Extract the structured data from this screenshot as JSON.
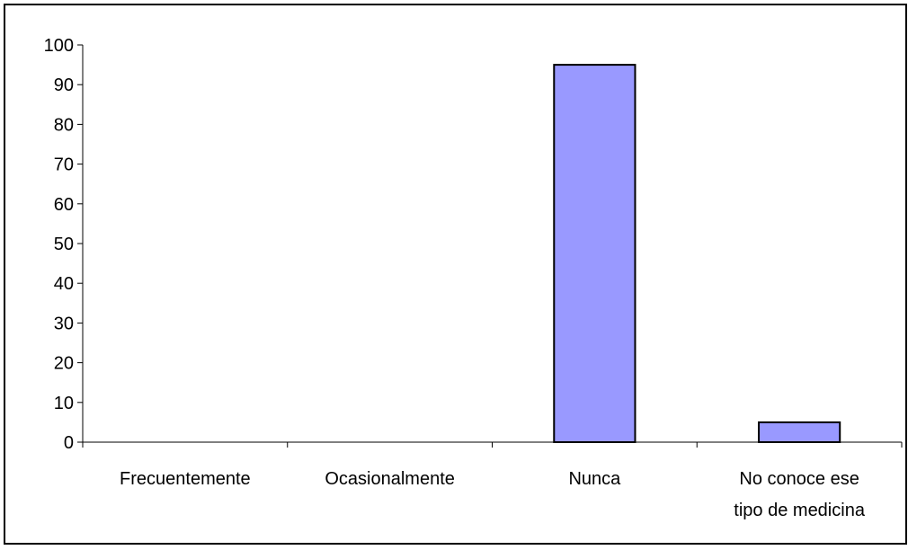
{
  "chart_data": {
    "type": "bar",
    "title": "",
    "xlabel": "",
    "ylabel": "",
    "categories": [
      [
        "Frecuentemente"
      ],
      [
        "Ocasionalmente"
      ],
      [
        "Nunca"
      ],
      [
        "No conoce ese",
        "tipo de medicina"
      ]
    ],
    "values": [
      0,
      0,
      95,
      5
    ],
    "ylim": [
      0,
      100
    ],
    "yticks": [
      0,
      10,
      20,
      30,
      40,
      50,
      60,
      70,
      80,
      90,
      100
    ],
    "grid": false,
    "legend": "none",
    "bar_color": "#9999ff",
    "bar_stroke": "#000000"
  }
}
